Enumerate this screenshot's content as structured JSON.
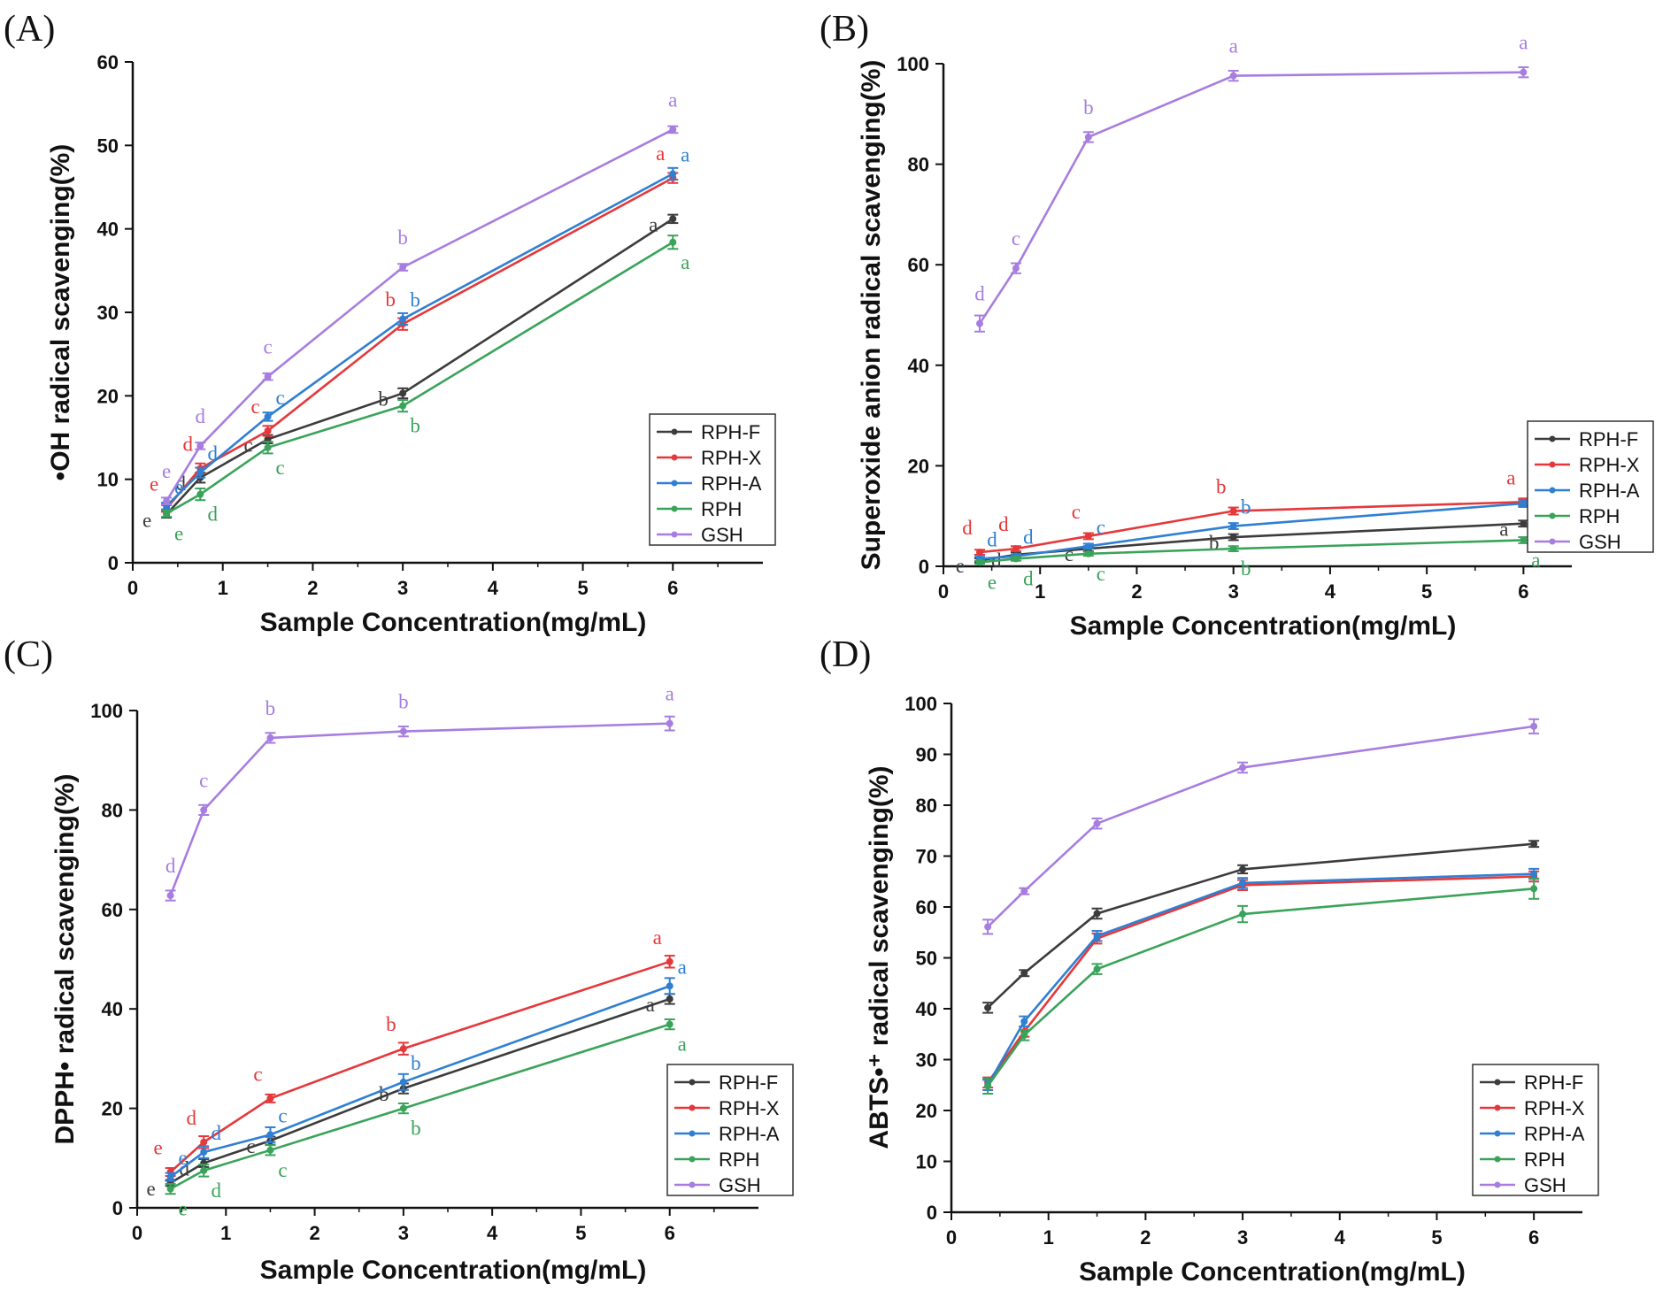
{
  "figure": {
    "legend_labels": [
      "RPH-F",
      "RPH-X",
      "RPH-A",
      "RPH",
      "GSH"
    ],
    "series_colors": {
      "RPH-F": "#3c3c3c",
      "RPH-X": "#e5383b",
      "RPH-A": "#2f7fd3",
      "RPH": "#3aa35a",
      "GSH": "#a77de0"
    }
  },
  "chart_data": [
    {
      "panel": "(A)",
      "type": "line",
      "title": "",
      "xlabel": "Sample Concentration(mg/mL)",
      "ylabel": "•OH radical scavenging(%)",
      "x": [
        0.375,
        0.75,
        1.5,
        3,
        6
      ],
      "xlim": [
        0,
        7
      ],
      "xticks": [
        0,
        1,
        2,
        3,
        4,
        5,
        6
      ],
      "ylim": [
        0,
        60
      ],
      "yticks": [
        0,
        10,
        20,
        30,
        40,
        50,
        60
      ],
      "legend": "bottom-right",
      "grid": false,
      "series": [
        {
          "name": "RPH-F",
          "values": [
            5.8,
            10.2,
            14.8,
            20.3,
            41.2
          ],
          "errors": [
            0.4,
            0.6,
            0.5,
            0.6,
            0.5
          ],
          "letters": [
            "e",
            "d",
            "c",
            "b",
            "a"
          ]
        },
        {
          "name": "RPH-X",
          "values": [
            6.5,
            11.3,
            15.8,
            28.6,
            46.1
          ],
          "errors": [
            0.4,
            0.6,
            0.6,
            0.7,
            0.6
          ],
          "letters": [
            "e",
            "d",
            "c",
            "b",
            "a"
          ]
        },
        {
          "name": "RPH-A",
          "values": [
            6.8,
            10.8,
            17.5,
            29.2,
            46.6
          ],
          "errors": [
            0.4,
            0.6,
            0.5,
            0.7,
            0.7
          ],
          "letters": [
            "e",
            "d",
            "c",
            "b",
            "a"
          ]
        },
        {
          "name": "RPH",
          "values": [
            5.9,
            8.2,
            13.8,
            18.8,
            38.4
          ],
          "errors": [
            0.4,
            0.7,
            0.7,
            0.7,
            0.8
          ],
          "letters": [
            "e",
            "d",
            "c",
            "b",
            "a"
          ]
        },
        {
          "name": "GSH",
          "values": [
            7.4,
            14.0,
            22.3,
            35.4,
            51.9
          ],
          "errors": [
            0.4,
            0.4,
            0.4,
            0.4,
            0.4
          ],
          "letters": [
            "e",
            "d",
            "c",
            "b",
            "a"
          ]
        }
      ]
    },
    {
      "panel": "(B)",
      "type": "line",
      "title": "",
      "xlabel": "Sample Concentration(mg/mL)",
      "ylabel": "Superoxide anion radical scavenging(%)",
      "x": [
        0.375,
        0.75,
        1.5,
        3,
        6
      ],
      "xlim": [
        0,
        6.5
      ],
      "xticks": [
        0,
        1,
        2,
        3,
        4,
        5,
        6
      ],
      "ylim": [
        0,
        100
      ],
      "yticks": [
        0,
        20,
        40,
        60,
        80,
        100
      ],
      "legend": "bottom-right",
      "grid": false,
      "series": [
        {
          "name": "RPH-F",
          "values": [
            1.2,
            2.3,
            3.5,
            5.8,
            8.5
          ],
          "errors": [
            0.4,
            0.5,
            0.5,
            0.6,
            0.6
          ],
          "letters": [
            "e",
            "d",
            "c",
            "b",
            "a"
          ]
        },
        {
          "name": "RPH-X",
          "values": [
            2.8,
            3.5,
            6.0,
            11.0,
            12.8
          ],
          "errors": [
            0.5,
            0.5,
            0.6,
            0.7,
            0.7
          ],
          "letters": [
            "d",
            "d",
            "c",
            "b",
            "a"
          ]
        },
        {
          "name": "RPH-A",
          "values": [
            1.5,
            2.0,
            4.0,
            8.0,
            12.5
          ],
          "errors": [
            0.4,
            0.4,
            0.5,
            0.6,
            0.7
          ],
          "letters": [
            "d",
            "d",
            "c",
            "b",
            "a"
          ]
        },
        {
          "name": "RPH",
          "values": [
            0.8,
            1.5,
            2.5,
            3.5,
            5.2
          ],
          "errors": [
            0.3,
            0.4,
            0.4,
            0.5,
            0.6
          ],
          "letters": [
            "e",
            "d",
            "c",
            "b",
            "a"
          ]
        },
        {
          "name": "GSH",
          "values": [
            48.3,
            59.3,
            85.4,
            97.6,
            98.3
          ],
          "errors": [
            1.6,
            1.0,
            1.0,
            1.0,
            1.0
          ],
          "letters": [
            "d",
            "c",
            "b",
            "a",
            "a"
          ]
        }
      ]
    },
    {
      "panel": "(C)",
      "type": "line",
      "title": "",
      "xlabel": "Sample Concentration(mg/mL)",
      "ylabel": "DPPH• radical scavenging(%)",
      "x": [
        0.375,
        0.75,
        1.5,
        3,
        6
      ],
      "xlim": [
        0,
        7
      ],
      "xticks": [
        0,
        1,
        2,
        3,
        4,
        5,
        6
      ],
      "ylim": [
        0,
        100
      ],
      "yticks": [
        0,
        20,
        40,
        60,
        80,
        100
      ],
      "legend": "bottom-right",
      "grid": false,
      "series": [
        {
          "name": "RPH-F",
          "values": [
            5.0,
            9.0,
            13.5,
            24.0,
            42.0
          ],
          "errors": [
            0.6,
            0.8,
            0.8,
            1.0,
            1.0
          ],
          "letters": [
            "e",
            "d",
            "c",
            "b",
            "a"
          ]
        },
        {
          "name": "RPH-X",
          "values": [
            7.2,
            13.2,
            22.0,
            32.0,
            49.5
          ],
          "errors": [
            0.8,
            1.2,
            0.8,
            1.2,
            1.2
          ],
          "letters": [
            "e",
            "d",
            "c",
            "b",
            "a"
          ]
        },
        {
          "name": "RPH-A",
          "values": [
            6.2,
            11.2,
            14.7,
            25.3,
            44.6
          ],
          "errors": [
            0.8,
            1.2,
            1.5,
            1.6,
            1.6
          ],
          "letters": [
            "e",
            "d",
            "c",
            "b",
            "a"
          ]
        },
        {
          "name": "RPH",
          "values": [
            3.8,
            7.5,
            11.6,
            20.0,
            36.9
          ],
          "errors": [
            1.0,
            1.2,
            1.0,
            1.0,
            1.0
          ],
          "letters": [
            "e",
            "d",
            "c",
            "b",
            "a"
          ]
        },
        {
          "name": "GSH",
          "values": [
            62.8,
            80.0,
            94.5,
            95.8,
            97.4
          ],
          "errors": [
            1.0,
            1.0,
            1.0,
            1.0,
            1.4
          ],
          "letters": [
            "d",
            "c",
            "b",
            "b",
            "a"
          ]
        }
      ]
    },
    {
      "panel": "(D)",
      "type": "line",
      "title": "",
      "xlabel": "Sample Concentration(mg/mL)",
      "ylabel": "ABTS•⁺ radical scavenging(%)",
      "x": [
        0.375,
        0.75,
        1.5,
        3,
        6
      ],
      "xlim": [
        0,
        6.5
      ],
      "xticks": [
        0,
        1,
        2,
        3,
        4,
        5,
        6
      ],
      "ylim": [
        0,
        100
      ],
      "yticks": [
        0,
        10,
        20,
        30,
        40,
        50,
        60,
        70,
        80,
        90,
        100
      ],
      "legend": "bottom-right",
      "grid": false,
      "series": [
        {
          "name": "RPH-F",
          "values": [
            40.2,
            47.0,
            58.7,
            67.4,
            72.4
          ],
          "errors": [
            1.0,
            0.6,
            1.0,
            0.8,
            0.6
          ]
        },
        {
          "name": "RPH-X",
          "values": [
            25.5,
            35.5,
            53.8,
            64.3,
            66.0
          ],
          "errors": [
            1.0,
            1.0,
            1.0,
            1.0,
            1.0
          ]
        },
        {
          "name": "RPH-A",
          "values": [
            25.0,
            37.5,
            54.3,
            64.7,
            66.5
          ],
          "errors": [
            1.0,
            1.0,
            1.0,
            1.0,
            1.0
          ]
        },
        {
          "name": "RPH",
          "values": [
            24.8,
            34.8,
            47.8,
            58.6,
            63.6
          ],
          "errors": [
            1.5,
            1.0,
            1.0,
            1.6,
            2.0
          ]
        },
        {
          "name": "GSH",
          "values": [
            56.1,
            63.1,
            76.4,
            87.4,
            95.5
          ],
          "errors": [
            1.4,
            0.6,
            1.0,
            1.0,
            1.4
          ]
        }
      ]
    }
  ]
}
